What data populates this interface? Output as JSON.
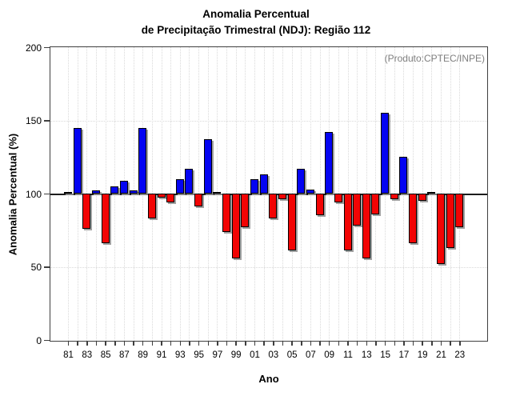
{
  "chart_data": {
    "type": "bar",
    "title_line1": "Anomalia Percentual",
    "title_line2": "de Precipitação Trimestral (NDJ): Região 112",
    "ylabel": "Anomalia Percentual (%)",
    "xlabel": "Ano",
    "annotation": "(Produto:CPTEC/INPE)",
    "baseline": 100,
    "ylim": [
      0,
      200
    ],
    "yticks": [
      0,
      50,
      100,
      150,
      200
    ],
    "hgridlines": [
      50,
      150
    ],
    "label_every": 2,
    "grid": "dotted",
    "legend": "none",
    "positive_color": "#0404f2",
    "negative_color": "#f20404",
    "bar_outline_color": "#000000",
    "shadow_color": "#919191",
    "categories": [
      "81",
      "82",
      "83",
      "84",
      "85",
      "86",
      "87",
      "88",
      "89",
      "90",
      "91",
      "92",
      "93",
      "94",
      "95",
      "96",
      "97",
      "98",
      "99",
      "00",
      "01",
      "02",
      "03",
      "04",
      "05",
      "06",
      "07",
      "08",
      "09",
      "10",
      "11",
      "12",
      "13",
      "14",
      "15",
      "16",
      "17",
      "18",
      "19",
      "20",
      "21",
      "22",
      "23"
    ],
    "values": [
      101,
      145,
      76,
      102,
      66,
      105,
      109,
      102,
      145,
      83,
      97,
      94,
      110,
      117,
      91,
      137,
      101,
      74,
      56,
      77,
      110,
      113,
      83,
      96,
      61,
      117,
      103,
      85,
      142,
      94,
      61,
      78,
      56,
      86,
      155,
      96,
      125,
      66,
      95,
      101,
      52,
      63,
      77
    ]
  }
}
